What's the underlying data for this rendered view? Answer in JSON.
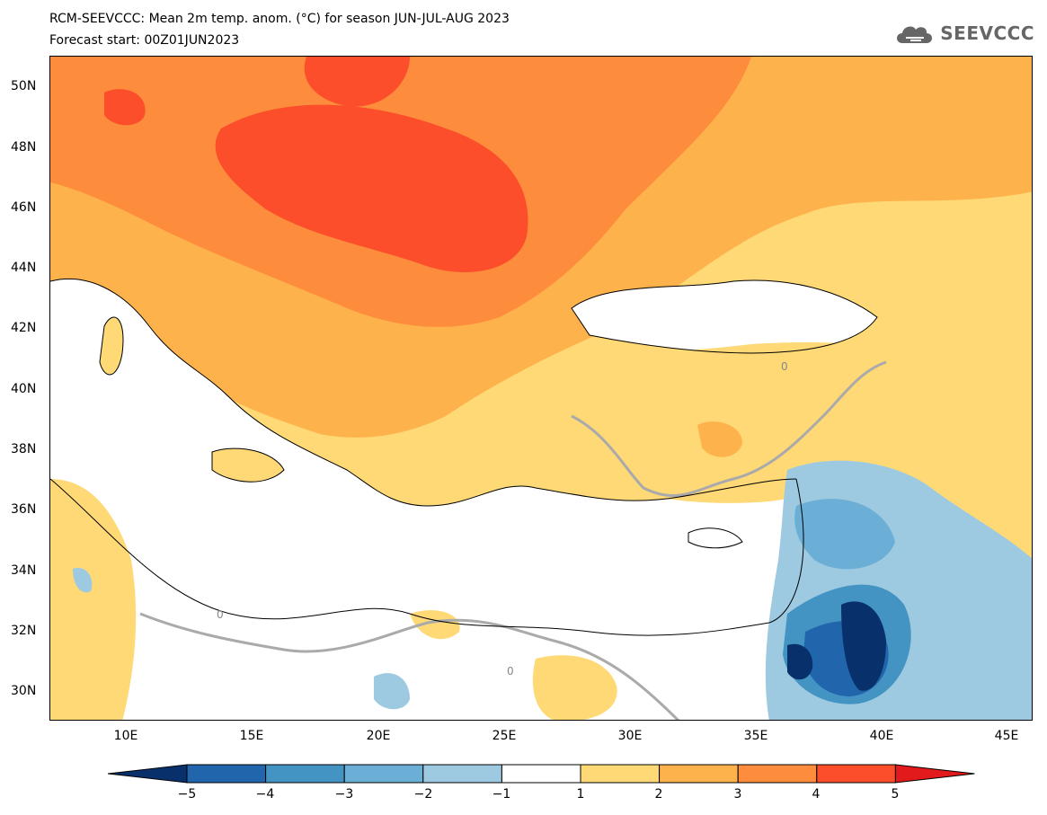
{
  "title_line1": "RCM-SEEVCCC: Mean 2m temp. anom. (°C) for season JUN-JUL-AUG 2023",
  "title_line2": "Forecast start: 00Z01JUN2023",
  "logo_text": "SEEVCCC",
  "contour_label": "0",
  "lat_ticks": [
    "50N",
    "48N",
    "46N",
    "44N",
    "42N",
    "40N",
    "38N",
    "36N",
    "34N",
    "32N",
    "30N"
  ],
  "lon_ticks": [
    "10E",
    "15E",
    "20E",
    "25E",
    "30E",
    "35E",
    "40E",
    "45E"
  ],
  "colorbar": {
    "labels": [
      "−5",
      "−4",
      "−3",
      "−2",
      "−1",
      "1",
      "2",
      "3",
      "4",
      "5"
    ],
    "colors": [
      "#08306b",
      "#2166ac",
      "#4393c3",
      "#6baed6",
      "#9ecae1",
      "#ffffff",
      "#fed976",
      "#feb24c",
      "#fd8d3c",
      "#fc4e2a",
      "#e31a1c"
    ]
  }
}
